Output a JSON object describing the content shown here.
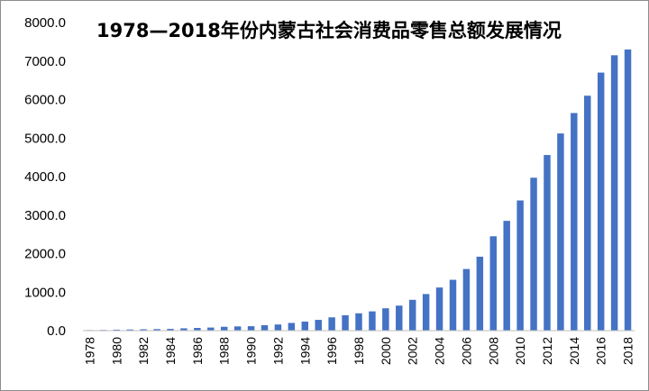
{
  "chart_data": {
    "type": "bar",
    "title": "1978—2018年份内蒙古社会消费品零售总额发展情况",
    "xlabel": "",
    "ylabel": "",
    "ylim": [
      0,
      8000
    ],
    "yticks": [
      "0.0",
      "1000.0",
      "2000.0",
      "3000.0",
      "4000.0",
      "5000.0",
      "6000.0",
      "7000.0",
      "8000.0"
    ],
    "categories": [
      "1978",
      "1979",
      "1980",
      "1981",
      "1982",
      "1983",
      "1984",
      "1985",
      "1986",
      "1987",
      "1988",
      "1989",
      "1990",
      "1991",
      "1992",
      "1993",
      "1994",
      "1995",
      "1996",
      "1997",
      "1998",
      "1999",
      "2000",
      "2001",
      "2002",
      "2003",
      "2004",
      "2005",
      "2006",
      "2007",
      "2008",
      "2009",
      "2010",
      "2011",
      "2012",
      "2013",
      "2014",
      "2015",
      "2016",
      "2017",
      "2018"
    ],
    "xtick_labels": [
      "1978",
      "1980",
      "1982",
      "1984",
      "1986",
      "1988",
      "1990",
      "1992",
      "1994",
      "1996",
      "1998",
      "2000",
      "2002",
      "2004",
      "2006",
      "2008",
      "2010",
      "2012",
      "2014",
      "2016",
      "2018"
    ],
    "values": [
      15,
      18,
      25,
      30,
      35,
      40,
      45,
      60,
      70,
      80,
      100,
      110,
      115,
      140,
      160,
      200,
      235,
      280,
      345,
      400,
      450,
      500,
      580,
      650,
      800,
      950,
      1120,
      1320,
      1600,
      1920,
      2450,
      2850,
      3380,
      3970,
      4560,
      5120,
      5650,
      6100,
      6700,
      7150,
      7300
    ],
    "grid": false,
    "legend": "none",
    "bar_color": "#4472C4"
  }
}
